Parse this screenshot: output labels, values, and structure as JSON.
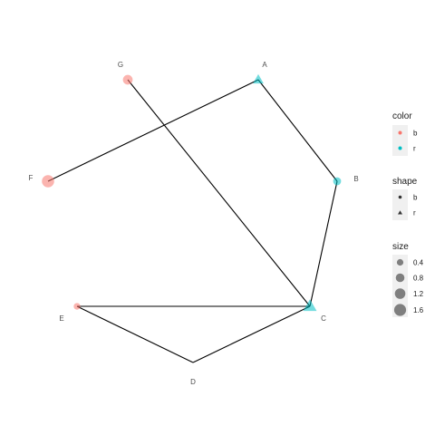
{
  "graph": {
    "nodes": [
      {
        "id": "A",
        "label": "A",
        "color_group": "r",
        "shape_group": "r",
        "size": 0.8
      },
      {
        "id": "B",
        "label": "B",
        "color_group": "r",
        "shape_group": "b",
        "size": 0.4
      },
      {
        "id": "C",
        "label": "C",
        "color_group": "r",
        "shape_group": "r",
        "size": 1.6
      },
      {
        "id": "D",
        "label": "D",
        "color_group": null,
        "shape_group": null,
        "size": null
      },
      {
        "id": "E",
        "label": "E",
        "color_group": "b",
        "shape_group": "b",
        "size": 0.2
      },
      {
        "id": "F",
        "label": "F",
        "color_group": "b",
        "shape_group": "b",
        "size": 1.6
      },
      {
        "id": "G",
        "label": "G",
        "color_group": "b",
        "shape_group": "b",
        "size": 0.8
      }
    ],
    "edges": [
      {
        "from": "A",
        "to": "F"
      },
      {
        "from": "A",
        "to": "B"
      },
      {
        "from": "B",
        "to": "C"
      },
      {
        "from": "G",
        "to": "C"
      },
      {
        "from": "C",
        "to": "E"
      },
      {
        "from": "E",
        "to": "D"
      },
      {
        "from": "D",
        "to": "C"
      }
    ]
  },
  "colors": {
    "b": "#F8766D",
    "r": "#00BFC4",
    "edge": "#000000",
    "size_key": "#7f7f7f"
  },
  "legend": {
    "color": {
      "title": "color",
      "items": [
        "b",
        "r"
      ]
    },
    "shape": {
      "title": "shape",
      "items": [
        {
          "label": "b",
          "shape": "circle"
        },
        {
          "label": "r",
          "shape": "triangle"
        }
      ]
    },
    "size": {
      "title": "size",
      "items": [
        {
          "label": "0.4",
          "value": 0.4
        },
        {
          "label": "0.8",
          "value": 0.8
        },
        {
          "label": "1.2",
          "value": 1.2
        },
        {
          "label": "1.6",
          "value": 1.6
        }
      ]
    }
  }
}
